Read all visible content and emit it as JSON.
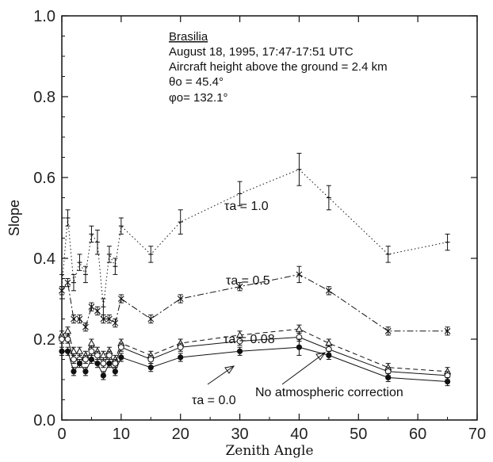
{
  "chart_data": {
    "type": "line",
    "xlabel": "Zenith Angle",
    "ylabel": "Slope",
    "xlim": [
      0,
      70
    ],
    "ylim": [
      0.0,
      1.0
    ],
    "xticks": [
      "0",
      "10",
      "20",
      "30",
      "40",
      "50",
      "60",
      "70"
    ],
    "yticks": [
      "0.0",
      "0.2",
      "0.4",
      "0.6",
      "0.8",
      "1.0"
    ],
    "annotation": {
      "location": "Brasilia",
      "date": "August 18, 1995, 17:47-17:51 UTC",
      "height": "Aircraft height above the ground = 2.4 km",
      "theta": "θo = 45.4°",
      "phi": "φo= 132.1°"
    },
    "series": [
      {
        "name": "τa = 1.0",
        "style": "dotted",
        "marker": "plus",
        "x": [
          0,
          1,
          2,
          3,
          4,
          5,
          6,
          7,
          8,
          9,
          10,
          15,
          20,
          30,
          40,
          45,
          55,
          65
        ],
        "y": [
          0.33,
          0.5,
          0.34,
          0.39,
          0.36,
          0.46,
          0.44,
          0.28,
          0.41,
          0.38,
          0.48,
          0.41,
          0.49,
          0.56,
          0.62,
          0.55,
          0.41,
          0.44
        ],
        "err": [
          0.03,
          0.02,
          0.02,
          0.02,
          0.02,
          0.02,
          0.03,
          0.02,
          0.02,
          0.02,
          0.02,
          0.02,
          0.03,
          0.03,
          0.04,
          0.03,
          0.02,
          0.02
        ]
      },
      {
        "name": "τa = 0.5",
        "style": "dashdot",
        "marker": "x",
        "x": [
          0,
          1,
          2,
          3,
          4,
          5,
          6,
          7,
          8,
          9,
          10,
          15,
          20,
          30,
          40,
          45,
          55,
          65
        ],
        "y": [
          0.32,
          0.34,
          0.25,
          0.25,
          0.23,
          0.28,
          0.27,
          0.25,
          0.25,
          0.24,
          0.3,
          0.25,
          0.3,
          0.33,
          0.36,
          0.32,
          0.22,
          0.22
        ],
        "err": [
          0.01,
          0.01,
          0.01,
          0.01,
          0.01,
          0.01,
          0.01,
          0.01,
          0.01,
          0.01,
          0.01,
          0.01,
          0.01,
          0.01,
          0.02,
          0.01,
          0.01,
          0.01
        ]
      },
      {
        "name": "τa = 0.08",
        "style": "dashed",
        "marker": "triangle",
        "x": [
          0,
          1,
          2,
          3,
          4,
          5,
          6,
          7,
          8,
          9,
          10,
          15,
          20,
          30,
          40,
          45,
          55,
          65
        ],
        "y": [
          0.21,
          0.22,
          0.17,
          0.17,
          0.16,
          0.19,
          0.17,
          0.16,
          0.17,
          0.15,
          0.19,
          0.16,
          0.19,
          0.21,
          0.225,
          0.19,
          0.13,
          0.12
        ],
        "err": [
          0.01,
          0.01,
          0.01,
          0.01,
          0.01,
          0.01,
          0.01,
          0.01,
          0.01,
          0.01,
          0.01,
          0.01,
          0.01,
          0.01,
          0.01,
          0.01,
          0.01,
          0.01
        ]
      },
      {
        "name": "No atmospheric correction",
        "style": "solid",
        "marker": "circle-open",
        "x": [
          0,
          1,
          2,
          3,
          4,
          5,
          6,
          7,
          8,
          9,
          10,
          15,
          20,
          30,
          40,
          45,
          55,
          65
        ],
        "y": [
          0.2,
          0.2,
          0.15,
          0.15,
          0.15,
          0.17,
          0.16,
          0.14,
          0.16,
          0.14,
          0.18,
          0.15,
          0.18,
          0.195,
          0.205,
          0.175,
          0.12,
          0.11
        ],
        "err": [
          0.01,
          0.01,
          0.01,
          0.01,
          0.01,
          0.01,
          0.01,
          0.01,
          0.01,
          0.01,
          0.01,
          0.01,
          0.01,
          0.01,
          0.01,
          0.01,
          0.01,
          0.01
        ]
      },
      {
        "name": "τa = 0.0",
        "style": "solid",
        "marker": "circle-filled",
        "x": [
          0,
          1,
          2,
          3,
          4,
          5,
          6,
          7,
          8,
          9,
          10,
          15,
          20,
          30,
          40,
          45,
          55,
          65
        ],
        "y": [
          0.17,
          0.17,
          0.12,
          0.14,
          0.12,
          0.15,
          0.14,
          0.11,
          0.14,
          0.12,
          0.155,
          0.13,
          0.155,
          0.17,
          0.18,
          0.16,
          0.105,
          0.095
        ],
        "err": [
          0.01,
          0.01,
          0.01,
          0.01,
          0.01,
          0.01,
          0.01,
          0.01,
          0.01,
          0.01,
          0.01,
          0.01,
          0.01,
          0.01,
          0.02,
          0.01,
          0.01,
          0.01
        ]
      }
    ],
    "labels": {
      "tau10": "τa = 1.0",
      "tau05": "τa = 0.5",
      "tau008": "τa = 0.08",
      "tau00": "τa = 0.0",
      "noatm": "No atmospheric correction"
    }
  }
}
